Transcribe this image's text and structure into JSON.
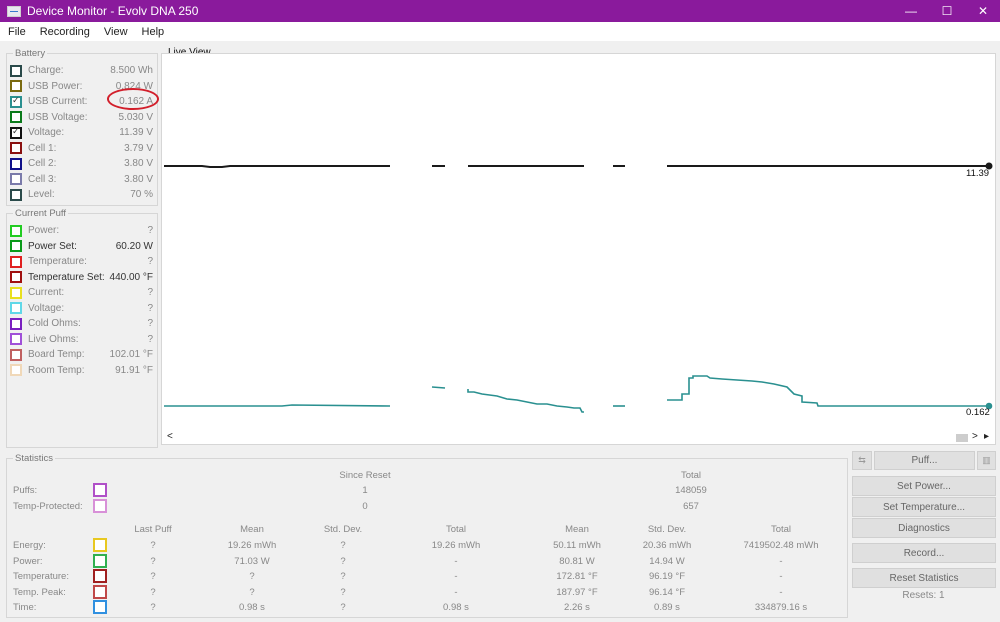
{
  "window": {
    "title": "Device Monitor - Evolv DNA 250",
    "min": "—",
    "max": "☐",
    "close": "✕"
  },
  "menu": [
    "File",
    "Recording",
    "View",
    "Help"
  ],
  "colors": {
    "titlebar": "#8a1a9c",
    "highlight_circle": "#d21f2b",
    "voltage_line": "#1a1a1a",
    "current_line": "#2a9090"
  },
  "battery": {
    "title": "Battery",
    "items": [
      {
        "label": "Charge:",
        "value": "8.500 Wh",
        "color": "#2a4a4a",
        "checked": false
      },
      {
        "label": "USB Power:",
        "value": "0.824 W",
        "color": "#7a6a10",
        "checked": false
      },
      {
        "label": "USB Current:",
        "value": "0.162 A",
        "color": "#2a9090",
        "checked": true
      },
      {
        "label": "USB Voltage:",
        "value": "5.030 V",
        "color": "#0a7a1a",
        "checked": false
      },
      {
        "label": "Voltage:",
        "value": "11.39 V",
        "color": "#111111",
        "checked": true
      },
      {
        "label": "Cell 1:",
        "value": "3.79 V",
        "color": "#8a1010",
        "checked": false
      },
      {
        "label": "Cell 2:",
        "value": "3.80 V",
        "color": "#10108a",
        "checked": false
      },
      {
        "label": "Cell 3:",
        "value": "3.80 V",
        "color": "#7a7aaa",
        "checked": false
      },
      {
        "label": "Level:",
        "value": "70 %",
        "color": "#2a4a4a",
        "checked": false
      }
    ]
  },
  "current_puff": {
    "title": "Current Puff",
    "items": [
      {
        "label": "Power:",
        "value": "?",
        "color": "#22cc22",
        "dark": false
      },
      {
        "label": "Power Set:",
        "value": "60.20 W",
        "color": "#0a9a1a",
        "dark": true
      },
      {
        "label": "Temperature:",
        "value": "?",
        "color": "#e02020",
        "dark": false
      },
      {
        "label": "Temperature Set:",
        "value": "440.00 °F",
        "color": "#a01010",
        "dark": true
      },
      {
        "label": "Current:",
        "value": "?",
        "color": "#e8e020",
        "dark": false
      },
      {
        "label": "Voltage:",
        "value": "?",
        "color": "#60d8e8",
        "dark": false
      },
      {
        "label": "Cold Ohms:",
        "value": "?",
        "color": "#7a20c0",
        "dark": false
      },
      {
        "label": "Live Ohms:",
        "value": "?",
        "color": "#a050d8",
        "dark": false
      },
      {
        "label": "Board Temp:",
        "value": "102.01 °F",
        "color": "#c06060",
        "dark": false
      },
      {
        "label": "Room Temp:",
        "value": "91.91 °F",
        "color": "#f0d8b8",
        "dark": false
      }
    ]
  },
  "live_view": {
    "title": "Live View",
    "voltage_end_label": "11.39",
    "current_end_label": "0.162",
    "scroll_left": "<",
    "scroll_right": ">",
    "scroll_end": "▸"
  },
  "statistics": {
    "title": "Statistics",
    "since_reset": "Since Reset",
    "total": "Total",
    "counts": [
      {
        "label": "Puffs:",
        "color": "#b050c8",
        "since_reset": "1",
        "total": "148059"
      },
      {
        "label": "Temp-Protected:",
        "color": "#d890d8",
        "since_reset": "0",
        "total": "657"
      }
    ],
    "columns": [
      "Last Puff",
      "Mean",
      "Std. Dev.",
      "Total",
      "Mean",
      "Std. Dev.",
      "Total"
    ],
    "rows": [
      {
        "label": "Energy:",
        "color": "#e8c820",
        "cells": [
          "?",
          "19.26 mWh",
          "?",
          "19.26 mWh",
          "50.11 mWh",
          "20.36 mWh",
          "7419502.48 mWh"
        ]
      },
      {
        "label": "Power:",
        "color": "#30b050",
        "cells": [
          "?",
          "71.03 W",
          "?",
          "-",
          "80.81 W",
          "14.94 W",
          "-"
        ]
      },
      {
        "label": "Temperature:",
        "color": "#a02020",
        "cells": [
          "?",
          "?",
          "?",
          "-",
          "172.81 °F",
          "96.19 °F",
          "-"
        ]
      },
      {
        "label": "Temp. Peak:",
        "color": "#c04848",
        "cells": [
          "?",
          "?",
          "?",
          "-",
          "187.97 °F",
          "96.14 °F",
          "-"
        ]
      },
      {
        "label": "Time:",
        "color": "#3090e0",
        "cells": [
          "?",
          "0.98 s",
          "?",
          "0.98 s",
          "2.26 s",
          "0.89 s",
          "334879.16 s"
        ]
      }
    ]
  },
  "buttons": {
    "puff_left": "⇆",
    "puff": "Puff...",
    "puff_right": "▥",
    "set_power": "Set Power...",
    "set_temperature": "Set Temperature...",
    "diagnostics": "Diagnostics",
    "record": "Record...",
    "reset_statistics": "Reset Statistics"
  },
  "resets": "Resets: 1"
}
